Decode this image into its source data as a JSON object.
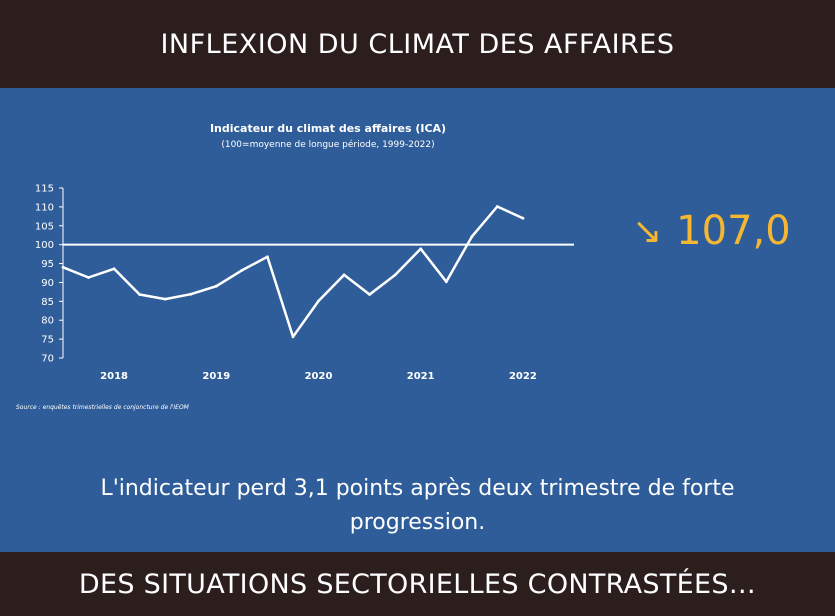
{
  "header": {
    "title": "INFLEXION DU CLIMAT DES AFFAIRES"
  },
  "footer": {
    "title": "DES SITUATIONS SECTORIELLES CONTRASTÉES…"
  },
  "kpi": {
    "icon": "arrow-down-right-icon",
    "value": "107,0",
    "color": "#f5b731"
  },
  "caption": "L'indicateur perd 3,1 points après deux trimestre de forte progression.",
  "source": "Source : enquêtes trimestrielles de conjoncture de l'IEOM",
  "colors": {
    "background": "#2f5d9a",
    "band": "#2d1e1e",
    "line": "#ffffff",
    "accent": "#f5b731"
  },
  "chart_data": {
    "type": "line",
    "title": "Indicateur du climat des affaires (ICA)",
    "subtitle": "(100=moyenne de longue période, 1999-2022)",
    "xlabel": "",
    "ylabel": "",
    "ylim": [
      70,
      115
    ],
    "yticks": [
      70,
      75,
      80,
      85,
      90,
      95,
      100,
      105,
      110,
      115
    ],
    "xlim": [
      2017.5,
      2022.5
    ],
    "xticks": [
      {
        "x": 2018,
        "label": "2018"
      },
      {
        "x": 2019,
        "label": "2019"
      },
      {
        "x": 2020,
        "label": "2020"
      },
      {
        "x": 2021,
        "label": "2021"
      },
      {
        "x": 2022,
        "label": "2022"
      }
    ],
    "reference_line": {
      "y": 100
    },
    "grid": false,
    "series": [
      {
        "x": [
          2017.5,
          2017.75,
          2018.0,
          2018.25,
          2018.5,
          2018.75,
          2019.0,
          2019.25,
          2019.5,
          2019.75,
          2020.0,
          2020.25,
          2020.5,
          2020.75,
          2021.0,
          2021.25,
          2021.5,
          2021.75,
          2022.0
        ],
        "values": [
          94,
          91.3,
          93.6,
          86.8,
          85.6,
          86.9,
          89.0,
          93.2,
          96.8,
          75.6,
          85.1,
          92.0,
          86.8,
          92.0,
          98.9,
          90.2,
          102.1,
          110.1,
          107.0
        ]
      }
    ]
  }
}
